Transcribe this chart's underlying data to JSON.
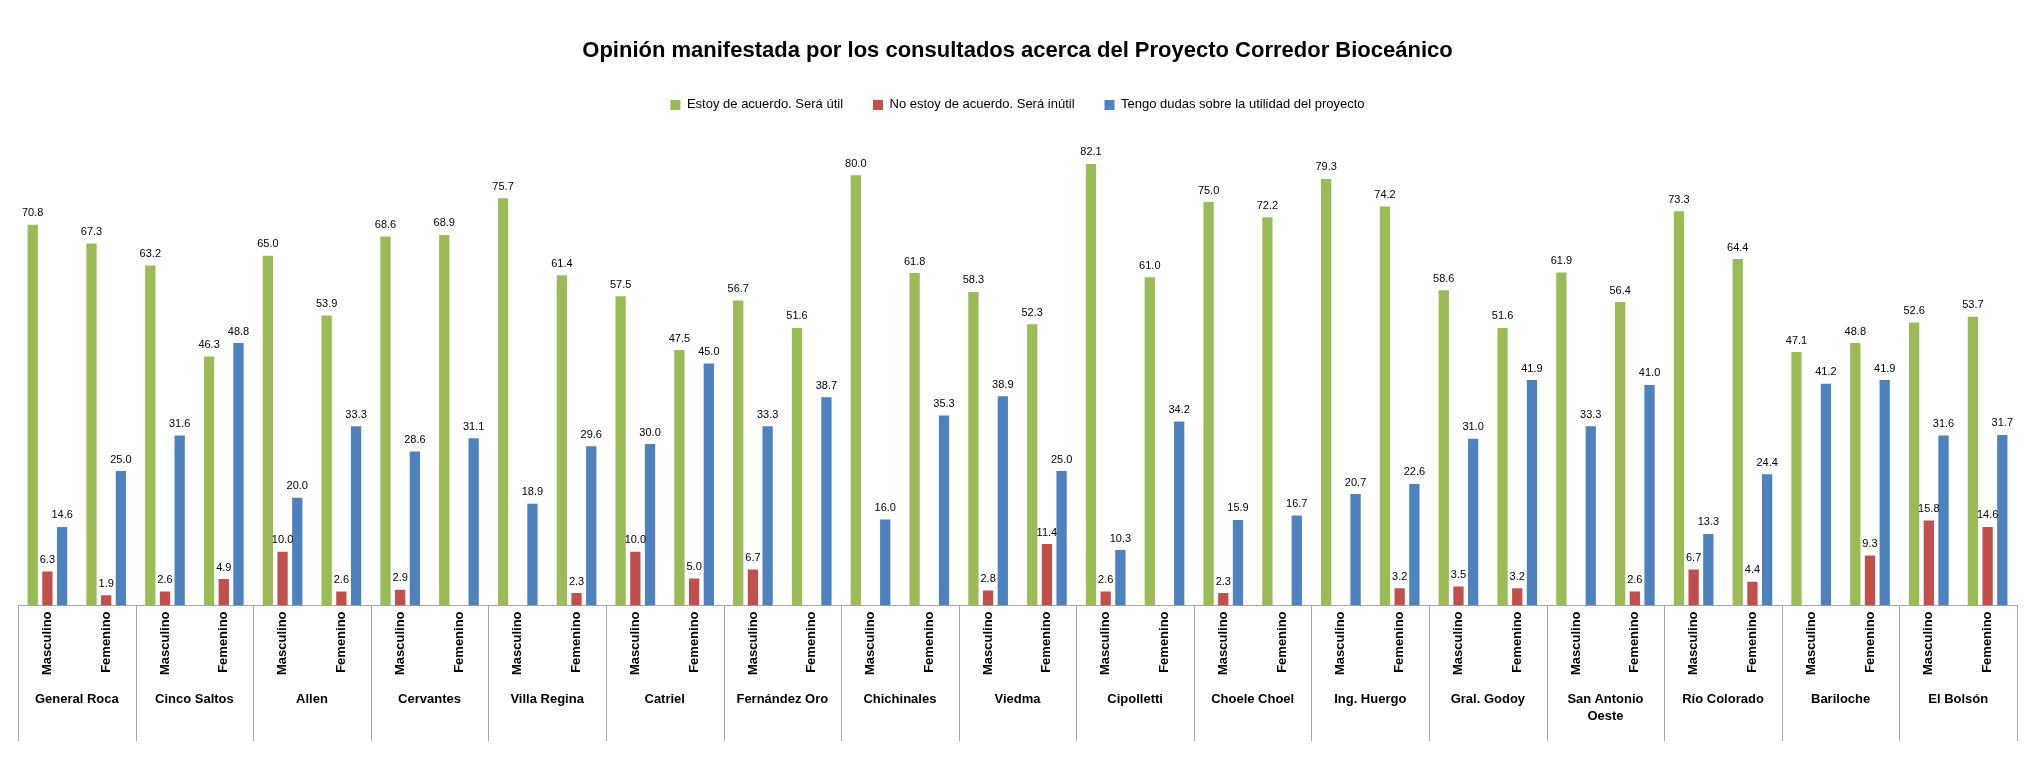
{
  "chart_data": {
    "type": "bar",
    "title": "Opinión manifestada por los consultados acerca del Proyecto Corredor Bioceánico",
    "categories": [
      "Masculino",
      "Femenino",
      "Masculino",
      "Femenino",
      "Masculino",
      "Femenino",
      "Masculino",
      "Femenino",
      "Masculino",
      "Femenino",
      "Masculino",
      "Femenino",
      "Masculino",
      "Femenino",
      "Masculino",
      "Femenino",
      "Masculino",
      "Femenino",
      "Masculino",
      "Femenino",
      "Masculino",
      "Femenino",
      "Masculino",
      "Femenino",
      "Masculino",
      "Femenino",
      "Masculino",
      "Femenino",
      "Masculino",
      "Femenino",
      "Masculino",
      "Femenino",
      "Masculino",
      "Femenino"
    ],
    "annotations": [
      "General Roca",
      "Cinco Saltos",
      "Allen",
      "Cervantes",
      "Villa Regina",
      "Catriel",
      "Fernández Oro",
      "Chichinales",
      "Viedma",
      "Cipolletti",
      "Choele Choel",
      "Ing. Huergo",
      "Gral. Godoy",
      "San Antonio Oeste",
      "Río Colorado",
      "Bariloche",
      "El Bolsón"
    ],
    "series": [
      {
        "name": "Estoy de acuerdo. Será útil",
        "color": "#9bbb59",
        "values": [
          70.8,
          67.3,
          63.2,
          46.3,
          65.0,
          53.9,
          68.6,
          68.9,
          75.7,
          61.4,
          57.5,
          47.5,
          56.7,
          51.6,
          80.0,
          61.8,
          58.3,
          52.3,
          82.1,
          61.0,
          75.0,
          72.2,
          79.3,
          74.2,
          58.6,
          51.6,
          61.9,
          56.4,
          73.3,
          64.4,
          47.1,
          48.8,
          52.6,
          53.7
        ],
        "value_labels": [
          "70.8",
          "67.3",
          "63.2",
          "46.3",
          "65.0",
          "53.9",
          "68.6",
          "68.9",
          "75.7",
          "61.4",
          "57.5",
          "47.5",
          "56.7",
          "51.6",
          "80.0",
          "61.8",
          "58.3",
          "52.3",
          "82.1",
          "61.0",
          "75.0",
          "72.2",
          "79.3",
          "74.2",
          "58.6",
          "51.6",
          "61.9",
          "56.4",
          "73.3",
          "64.4",
          "47.1",
          "48.8",
          "52.6",
          "53.7"
        ]
      },
      {
        "name": "No estoy de acuerdo. Será inútil",
        "color": "#c0504d",
        "values": [
          6.3,
          1.9,
          2.6,
          4.9,
          10.0,
          2.6,
          2.9,
          null,
          null,
          2.3,
          10.0,
          5.0,
          6.7,
          null,
          null,
          null,
          2.8,
          11.4,
          2.6,
          null,
          2.3,
          null,
          null,
          3.2,
          3.5,
          3.2,
          null,
          2.6,
          6.7,
          4.4,
          null,
          9.3,
          15.8,
          14.6
        ],
        "value_labels": [
          "6.3",
          "1.9",
          "2.6",
          "4.9",
          "10.0",
          "2.6",
          "2.9",
          null,
          null,
          "2.3",
          "10.0",
          "5.0",
          "6.7",
          null,
          null,
          null,
          "2.8",
          "11.4",
          "2.6",
          null,
          "2.3",
          null,
          null,
          "3.2",
          "3.5",
          "3.2",
          null,
          "2.6",
          "6.7",
          "4.4",
          null,
          "9.3",
          "15.8",
          "14.6"
        ]
      },
      {
        "name": "Tengo dudas sobre la utilidad del proyecto",
        "color": "#4f81bd",
        "values": [
          14.6,
          25.0,
          31.6,
          48.8,
          20.0,
          33.3,
          28.6,
          31.1,
          18.9,
          29.6,
          30.0,
          45.0,
          33.3,
          38.7,
          16.0,
          35.3,
          38.9,
          25.0,
          10.3,
          34.2,
          15.9,
          16.7,
          20.7,
          22.6,
          31.0,
          41.9,
          33.3,
          41.0,
          13.3,
          24.4,
          41.2,
          41.9,
          31.6,
          31.7
        ],
        "value_labels": [
          "14.6",
          "25.0",
          "31.6",
          "48.8",
          "20.0",
          "33.3",
          "28.6",
          "31.1",
          "18.9",
          "29.6",
          "30.0",
          "45.0",
          "33.3",
          "38.7",
          "16.0",
          "35.3",
          "38.9",
          "25.0",
          "10.3",
          "34.2",
          "15.9",
          "16.7",
          "20.7",
          "22.6",
          "31.0",
          "41.9",
          "33.3",
          "41.0",
          "13.3",
          "24.4",
          "41.2",
          "41.9",
          "31.6",
          "31.7"
        ]
      }
    ],
    "legend": "top",
    "grid": false,
    "tick_labels": "x"
  }
}
